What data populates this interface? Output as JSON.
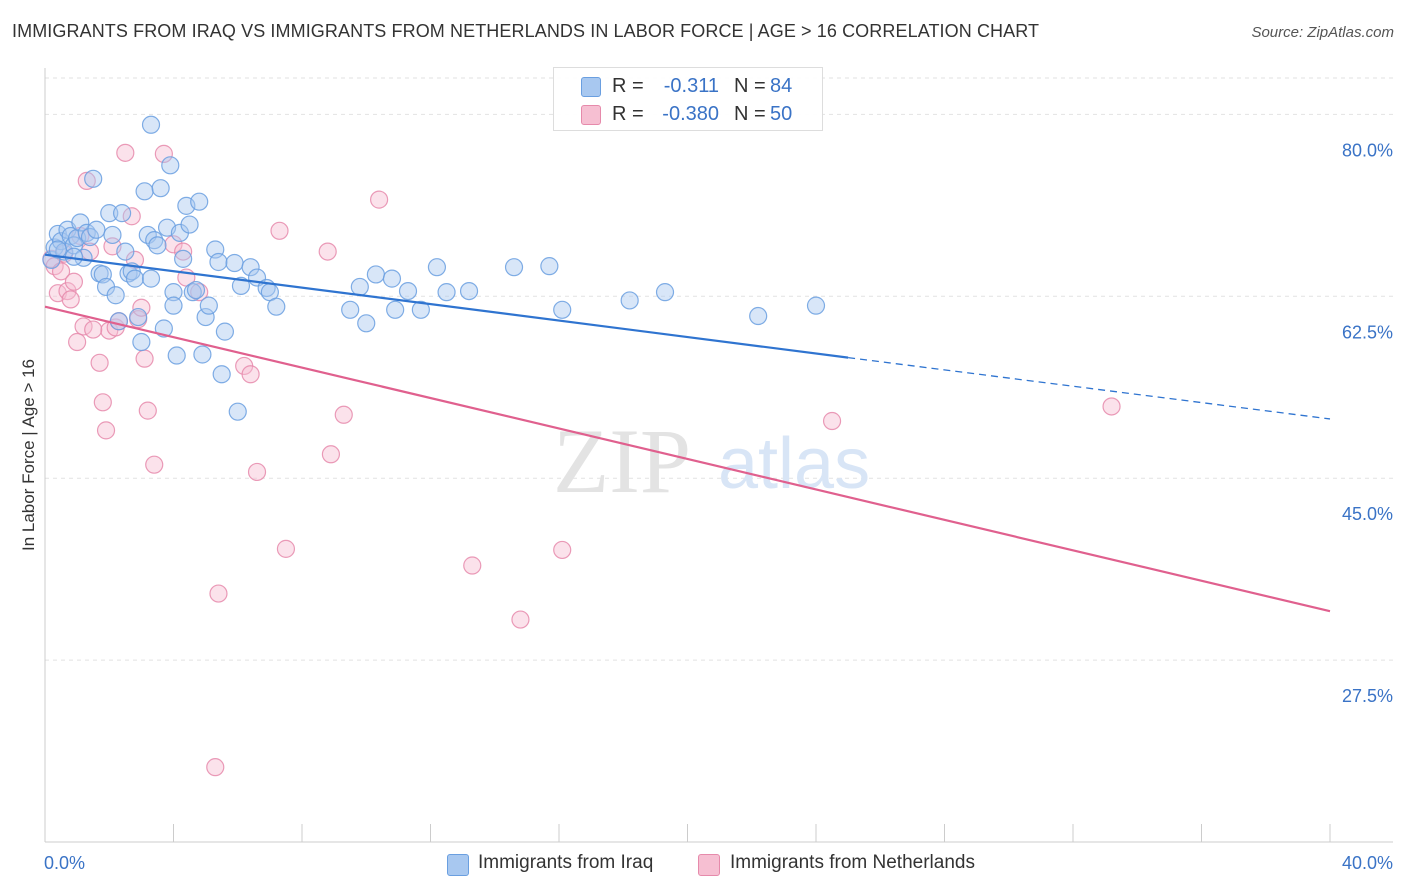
{
  "title": "IMMIGRANTS FROM IRAQ VS IMMIGRANTS FROM NETHERLANDS IN LABOR FORCE | AGE > 16 CORRELATION CHART",
  "source": "Source: ZipAtlas.com",
  "watermark": {
    "zip": "ZIP",
    "atlas": "atlas"
  },
  "legend_top": {
    "rows": [
      {
        "r_label": "R =",
        "r_value": "-0.311",
        "n_label": "N =",
        "n_value": "84"
      },
      {
        "r_label": "R =",
        "r_value": "-0.380",
        "n_label": "N =",
        "n_value": "50"
      }
    ]
  },
  "legend_bottom": {
    "series1": "Immigrants from Iraq",
    "series2": "Immigrants from Netherlands"
  },
  "colors": {
    "blue_fill": "#a8c8f0",
    "blue_stroke": "#6a9fe0",
    "blue_line": "#2f74d0",
    "pink_fill": "#f6bfd2",
    "pink_stroke": "#e68aab",
    "pink_line": "#e0608e",
    "tick_text": "#3a73c6"
  },
  "chart_data": {
    "type": "scatter",
    "title": "IMMIGRANTS FROM IRAQ VS IMMIGRANTS FROM NETHERLANDS IN LABOR FORCE | AGE > 16 CORRELATION CHART",
    "xlabel": "",
    "ylabel": "In Labor Force | Age > 16",
    "xlim": [
      0,
      40
    ],
    "ylim": [
      10,
      83.5
    ],
    "x_tick_labels": [
      {
        "value": 0,
        "label": "0.0%"
      },
      {
        "value": 40,
        "label": "40.0%"
      }
    ],
    "x_minor_ticks": [
      4,
      8,
      12,
      16,
      20,
      24,
      28,
      32,
      36,
      40
    ],
    "y_ticks": [
      {
        "value": 80,
        "label": "80.0%"
      },
      {
        "value": 62.5,
        "label": "62.5%"
      },
      {
        "value": 45,
        "label": "45.0%"
      },
      {
        "value": 27.5,
        "label": "27.5%"
      }
    ],
    "grid": true,
    "series": [
      {
        "name": "Immigrants from Iraq",
        "color": "blue",
        "r": -0.311,
        "n": 84,
        "trend": {
          "x0": 0,
          "y0": 66.5,
          "x1": 25,
          "y1": 56.6,
          "dash_to_x": 40,
          "dash_to_y": 50.7
        },
        "points": [
          [
            0.2,
            66
          ],
          [
            0.3,
            67.2
          ],
          [
            0.4,
            68.5
          ],
          [
            0.5,
            67.8
          ],
          [
            0.6,
            66.8
          ],
          [
            0.7,
            68.9
          ],
          [
            0.8,
            68.3
          ],
          [
            0.9,
            67.4
          ],
          [
            1.0,
            68.1
          ],
          [
            1.1,
            69.6
          ],
          [
            1.2,
            66.2
          ],
          [
            1.3,
            68.6
          ],
          [
            1.4,
            68.2
          ],
          [
            1.5,
            73.8
          ],
          [
            1.6,
            68.9
          ],
          [
            1.7,
            64.7
          ],
          [
            1.8,
            64.6
          ],
          [
            1.9,
            63.4
          ],
          [
            2.0,
            70.5
          ],
          [
            2.1,
            68.4
          ],
          [
            2.2,
            62.6
          ],
          [
            2.3,
            60.1
          ],
          [
            2.4,
            70.5
          ],
          [
            2.5,
            66.8
          ],
          [
            2.6,
            64.7
          ],
          [
            2.7,
            64.9
          ],
          [
            2.8,
            64.2
          ],
          [
            2.9,
            60.5
          ],
          [
            3.0,
            58.1
          ],
          [
            3.1,
            72.6
          ],
          [
            3.2,
            68.4
          ],
          [
            3.3,
            64.2
          ],
          [
            3.4,
            67.9
          ],
          [
            3.5,
            67.4
          ],
          [
            3.6,
            72.9
          ],
          [
            3.7,
            59.4
          ],
          [
            3.8,
            69.1
          ],
          [
            3.9,
            75.1
          ],
          [
            4.0,
            62.9
          ],
          [
            4.1,
            56.8
          ],
          [
            4.2,
            68.6
          ],
          [
            4.3,
            66.1
          ],
          [
            4.4,
            71.2
          ],
          [
            4.5,
            69.4
          ],
          [
            4.6,
            62.9
          ],
          [
            4.7,
            63.1
          ],
          [
            4.8,
            71.6
          ],
          [
            4.9,
            56.9
          ],
          [
            5.0,
            60.5
          ],
          [
            5.1,
            61.6
          ],
          [
            5.3,
            67.0
          ],
          [
            5.4,
            65.8
          ],
          [
            5.5,
            55.0
          ],
          [
            5.6,
            59.1
          ],
          [
            5.9,
            65.7
          ],
          [
            6.0,
            51.4
          ],
          [
            6.1,
            63.5
          ],
          [
            6.4,
            65.3
          ],
          [
            6.6,
            64.3
          ],
          [
            6.9,
            63.3
          ],
          [
            7.0,
            62.9
          ],
          [
            7.2,
            61.5
          ],
          [
            9.8,
            63.4
          ],
          [
            9.5,
            61.2
          ],
          [
            10.0,
            59.9
          ],
          [
            10.3,
            64.6
          ],
          [
            10.8,
            64.2
          ],
          [
            10.9,
            61.2
          ],
          [
            11.3,
            63.0
          ],
          [
            12.2,
            65.3
          ],
          [
            11.7,
            61.2
          ],
          [
            12.5,
            62.9
          ],
          [
            13.2,
            63.0
          ],
          [
            14.6,
            65.3
          ],
          [
            15.7,
            65.4
          ],
          [
            16.1,
            61.2
          ],
          [
            18.2,
            62.1
          ],
          [
            19.3,
            62.9
          ],
          [
            22.2,
            60.6
          ],
          [
            24.0,
            61.6
          ],
          [
            3.3,
            79.0
          ],
          [
            0.4,
            67.0
          ],
          [
            0.9,
            66.3
          ],
          [
            4.0,
            61.6
          ]
        ]
      },
      {
        "name": "Immigrants from Netherlands",
        "color": "pink",
        "r": -0.38,
        "n": 50,
        "trend": {
          "x0": 0,
          "y0": 61.5,
          "x1": 40,
          "y1": 32.2
        },
        "points": [
          [
            0.2,
            66.1
          ],
          [
            0.3,
            65.4
          ],
          [
            0.4,
            62.8
          ],
          [
            0.5,
            64.9
          ],
          [
            0.6,
            66.6
          ],
          [
            0.7,
            63.0
          ],
          [
            0.8,
            62.2
          ],
          [
            0.9,
            63.9
          ],
          [
            1.0,
            58.1
          ],
          [
            1.1,
            68.3
          ],
          [
            1.2,
            59.6
          ],
          [
            1.3,
            73.6
          ],
          [
            1.4,
            66.8
          ],
          [
            1.7,
            56.1
          ],
          [
            1.8,
            52.3
          ],
          [
            1.9,
            49.6
          ],
          [
            2.0,
            59.2
          ],
          [
            2.1,
            67.3
          ],
          [
            2.2,
            59.5
          ],
          [
            2.3,
            60.1
          ],
          [
            2.5,
            76.3
          ],
          [
            2.7,
            70.2
          ],
          [
            2.8,
            66.0
          ],
          [
            2.9,
            60.3
          ],
          [
            3.0,
            61.4
          ],
          [
            3.1,
            56.5
          ],
          [
            3.2,
            51.5
          ],
          [
            3.4,
            46.3
          ],
          [
            3.7,
            76.2
          ],
          [
            4.0,
            67.5
          ],
          [
            4.3,
            66.8
          ],
          [
            4.4,
            64.3
          ],
          [
            4.8,
            62.9
          ],
          [
            5.3,
            17.2
          ],
          [
            5.4,
            33.9
          ],
          [
            6.2,
            55.8
          ],
          [
            6.4,
            55.0
          ],
          [
            6.6,
            45.6
          ],
          [
            7.3,
            68.8
          ],
          [
            7.5,
            38.2
          ],
          [
            8.8,
            66.8
          ],
          [
            8.9,
            47.3
          ],
          [
            9.3,
            51.1
          ],
          [
            10.4,
            71.8
          ],
          [
            13.3,
            36.6
          ],
          [
            14.8,
            31.4
          ],
          [
            16.1,
            38.1
          ],
          [
            24.5,
            50.5
          ],
          [
            33.2,
            51.9
          ],
          [
            1.5,
            59.3
          ]
        ]
      }
    ]
  }
}
